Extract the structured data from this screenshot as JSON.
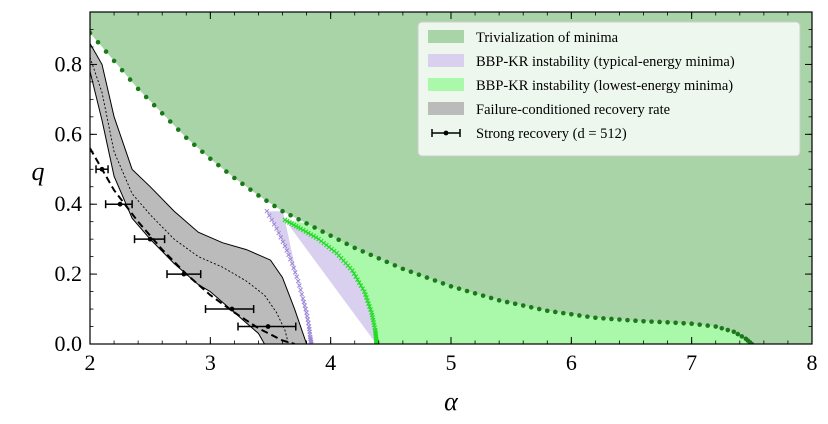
{
  "chart_data": {
    "type": "area",
    "xlabel": "α",
    "ylabel": "q",
    "xlim": [
      2,
      8
    ],
    "ylim": [
      0,
      0.95
    ],
    "x_ticks": [
      "2",
      "3",
      "4",
      "5",
      "6",
      "7",
      "8"
    ],
    "y_ticks": [
      "0.0",
      "0.2",
      "0.4",
      "0.6",
      "0.8"
    ],
    "x_tick_values": [
      2,
      3,
      4,
      5,
      6,
      7,
      8
    ],
    "y_tick_values": [
      0.0,
      0.2,
      0.4,
      0.6,
      0.8
    ],
    "legend": [
      {
        "label": "Trivialization of minima",
        "color": "#a8d4a8",
        "kind": "patch"
      },
      {
        "label": "BBP-KR instability (typical-energy minima)",
        "color": "#d8d0ee",
        "kind": "patch"
      },
      {
        "label": "BBP-KR instability (lowest-energy minima)",
        "color": "#aaf8aa",
        "kind": "patch"
      },
      {
        "label": "Failure-conditioned recovery rate",
        "color": "#bbbbbb",
        "kind": "patch"
      },
      {
        "label": "Strong recovery (d = 512)",
        "color": "#000000",
        "kind": "errorbar"
      }
    ],
    "series": [
      {
        "name": "Trivialization of minima",
        "kind": "boundary_dotted",
        "color": "#1a7a1a",
        "x": [
          2.0,
          2.2,
          2.4,
          2.6,
          2.8,
          3.0,
          3.2,
          3.4,
          3.6,
          3.8,
          4.0,
          4.2,
          4.4,
          4.6,
          4.8,
          5.0,
          5.2,
          5.4,
          5.6,
          5.8,
          6.0,
          6.2,
          6.4,
          6.6,
          6.8,
          7.0,
          7.2,
          7.35,
          7.45,
          7.5
        ],
        "y": [
          0.89,
          0.81,
          0.73,
          0.66,
          0.59,
          0.53,
          0.475,
          0.425,
          0.38,
          0.345,
          0.31,
          0.275,
          0.245,
          0.215,
          0.19,
          0.165,
          0.145,
          0.125,
          0.11,
          0.095,
          0.085,
          0.075,
          0.07,
          0.065,
          0.062,
          0.058,
          0.05,
          0.035,
          0.015,
          0.0
        ]
      },
      {
        "name": "BBP-KR instability (typical-energy minima)",
        "kind": "boundary_x",
        "color": "#9b84d8",
        "x": [
          3.47,
          3.55,
          3.62,
          3.68,
          3.73,
          3.77,
          3.8,
          3.82,
          3.83,
          3.84
        ],
        "y": [
          0.38,
          0.33,
          0.28,
          0.23,
          0.18,
          0.13,
          0.09,
          0.05,
          0.02,
          0.0
        ]
      },
      {
        "name": "BBP-KR instability (lowest-energy minima)",
        "kind": "boundary_x",
        "color": "#22dd22",
        "x": [
          3.62,
          3.75,
          3.9,
          4.05,
          4.18,
          4.28,
          4.34,
          4.37,
          4.38,
          4.38
        ],
        "y": [
          0.355,
          0.33,
          0.3,
          0.26,
          0.21,
          0.15,
          0.09,
          0.04,
          0.01,
          0.0
        ]
      },
      {
        "name": "Failure-conditioned recovery rate (upper)",
        "x": [
          2.0,
          2.1,
          2.2,
          2.35,
          2.5,
          2.7,
          2.9,
          3.1,
          3.3,
          3.5,
          3.6,
          3.7,
          3.8
        ],
        "y": [
          0.86,
          0.8,
          0.65,
          0.5,
          0.45,
          0.38,
          0.32,
          0.29,
          0.27,
          0.24,
          0.19,
          0.1,
          0.0
        ]
      },
      {
        "name": "Failure-conditioned recovery rate (median)",
        "x": [
          2.0,
          2.1,
          2.2,
          2.35,
          2.5,
          2.7,
          2.9,
          3.1,
          3.3,
          3.45,
          3.55,
          3.62,
          3.65
        ],
        "y": [
          0.82,
          0.72,
          0.55,
          0.43,
          0.37,
          0.3,
          0.25,
          0.22,
          0.18,
          0.14,
          0.09,
          0.04,
          0.0
        ]
      },
      {
        "name": "Failure-conditioned recovery rate (lower)",
        "x": [
          2.0,
          2.1,
          2.2,
          2.35,
          2.5,
          2.7,
          2.9,
          3.0,
          3.1,
          3.2,
          3.3,
          3.4,
          3.45
        ],
        "y": [
          0.78,
          0.64,
          0.48,
          0.36,
          0.3,
          0.23,
          0.17,
          0.15,
          0.12,
          0.09,
          0.06,
          0.03,
          0.0
        ]
      },
      {
        "name": "Dashed fit",
        "kind": "dashed",
        "color": "#000000",
        "x": [
          2.0,
          2.2,
          2.4,
          2.6,
          2.8,
          3.0,
          3.2,
          3.4,
          3.6,
          3.7
        ],
        "y": [
          0.56,
          0.44,
          0.35,
          0.27,
          0.2,
          0.14,
          0.09,
          0.045,
          0.01,
          0.0
        ]
      },
      {
        "name": "Strong recovery (d = 512)",
        "kind": "errorbar",
        "color": "#000000",
        "x": [
          2.1,
          2.25,
          2.5,
          2.78,
          3.18,
          3.48
        ],
        "xerr_low": [
          0.05,
          0.12,
          0.13,
          0.14,
          0.22,
          0.25
        ],
        "xerr_high": [
          0.05,
          0.1,
          0.12,
          0.14,
          0.18,
          0.23
        ],
        "y": [
          0.5,
          0.4,
          0.3,
          0.2,
          0.1,
          0.05
        ]
      }
    ]
  }
}
